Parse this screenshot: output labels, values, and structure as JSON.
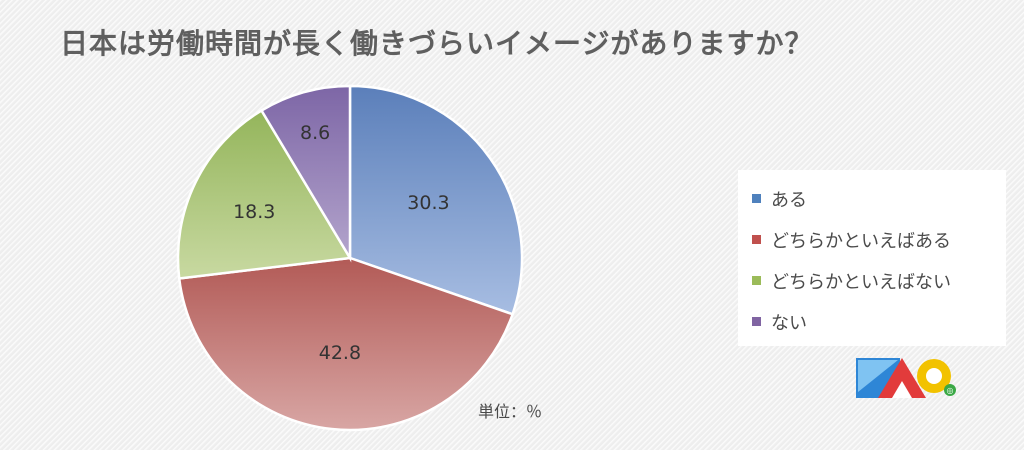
{
  "chart_data": {
    "type": "pie",
    "title": "日本は労働時間が長く働きづらいイメージがありますか？",
    "unit_note": "単位：％",
    "categories": [
      "ある",
      "どちらかといえばある",
      "どちらかといえばない",
      "ない"
    ],
    "values": [
      30.3,
      42.8,
      18.3,
      8.6
    ],
    "value_labels": [
      "30.3",
      "42.8",
      "18.3",
      "8.6"
    ],
    "colors": [
      {
        "light": "#a7bde2",
        "dark": "#5b7fba"
      },
      {
        "light": "#d8a6a4",
        "dark": "#b25a56"
      },
      {
        "light": "#c8d9a1",
        "dark": "#94b55b"
      },
      {
        "light": "#b3a4cc",
        "dark": "#7d66a6"
      }
    ],
    "legend": {
      "position": "right",
      "items": [
        {
          "label": "ある",
          "color": "#4f81bd"
        },
        {
          "label": "どちらかといえばある",
          "color": "#c0504d"
        },
        {
          "label": "どちらかといえばない",
          "color": "#9bbb59"
        },
        {
          "label": "ない",
          "color": "#8064a2"
        }
      ]
    }
  },
  "logo": {
    "icon": "brand-logo-icon"
  }
}
